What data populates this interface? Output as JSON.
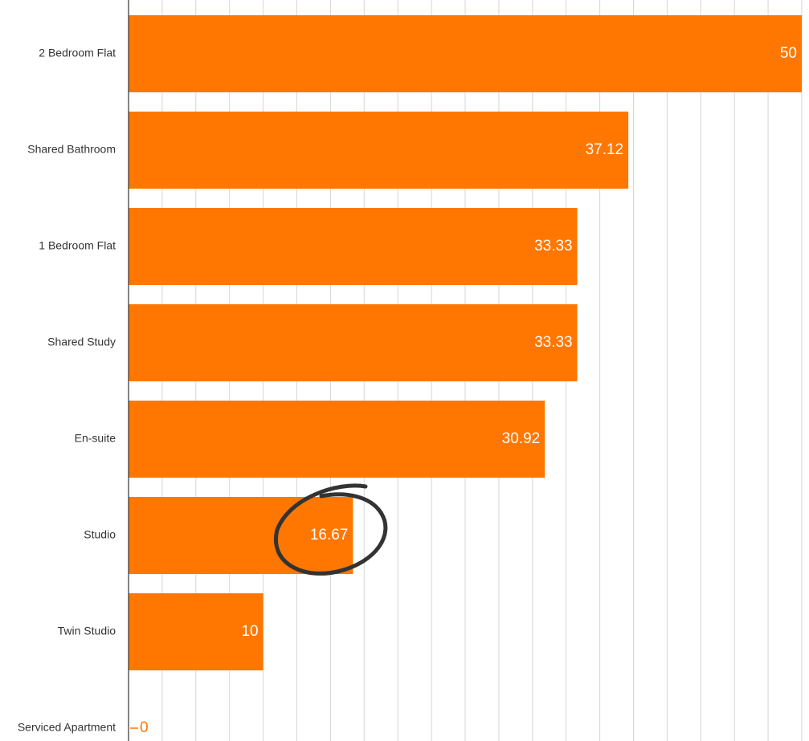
{
  "chart_data": {
    "type": "bar",
    "orientation": "horizontal",
    "categories": [
      "2 Bedroom Flat",
      "Shared Bathroom",
      "1 Bedroom Flat",
      "Shared Study",
      "En-suite",
      "Studio",
      "Twin Studio",
      "Serviced Apartment"
    ],
    "values": [
      50,
      37.12,
      33.33,
      33.33,
      30.92,
      16.67,
      10,
      0
    ],
    "color": "#ff7700",
    "xlim": [
      0,
      50
    ],
    "xticks": [
      0,
      2.5,
      5,
      7.5,
      10,
      12.5,
      15,
      17.5,
      20,
      22.5,
      25,
      27.5,
      30,
      32.5,
      35,
      37.5,
      40,
      42.5,
      45,
      47.5,
      50
    ],
    "grid": true
  }
}
